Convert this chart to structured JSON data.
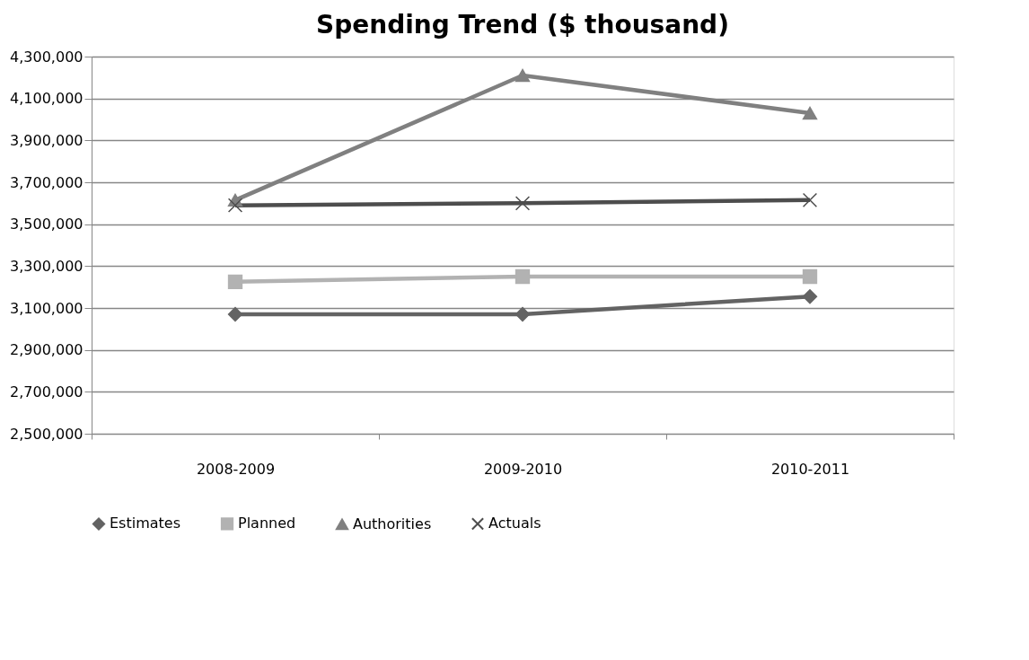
{
  "chart_data": {
    "type": "line",
    "title": "Spending Trend ($ thousand)",
    "categories": [
      "2008-2009",
      "2009-2010",
      "2010-2011"
    ],
    "series": [
      {
        "name": "Estimates",
        "color": "#636363",
        "marker": "diamond",
        "values": [
          3070000,
          3070000,
          3155000
        ]
      },
      {
        "name": "Planned",
        "color": "#b2b2b2",
        "marker": "square",
        "values": [
          3225000,
          3250000,
          3250000
        ]
      },
      {
        "name": "Authorities",
        "color": "#808080",
        "marker": "triangle",
        "values": [
          3615000,
          4210000,
          4030000
        ]
      },
      {
        "name": "Actuals",
        "color": "#4d4d4d",
        "marker": "cross",
        "values": [
          3590000,
          3600000,
          3615000
        ]
      }
    ],
    "ylim": [
      2500000,
      4300000
    ],
    "yticks": [
      {
        "value": 2500000,
        "label": "2,500,000"
      },
      {
        "value": 2700000,
        "label": "2,700,000"
      },
      {
        "value": 2900000,
        "label": "2,900,000"
      },
      {
        "value": 3100000,
        "label": "3,100,000"
      },
      {
        "value": 3300000,
        "label": "3,300,000"
      },
      {
        "value": 3500000,
        "label": "3,500,000"
      },
      {
        "value": 3700000,
        "label": "3,700,000"
      },
      {
        "value": 3900000,
        "label": "3,900,000"
      },
      {
        "value": 4100000,
        "label": "4,100,000"
      },
      {
        "value": 4300000,
        "label": "4,300,000"
      }
    ],
    "grid": "y",
    "legend": "bottom",
    "line_style": "solid"
  }
}
